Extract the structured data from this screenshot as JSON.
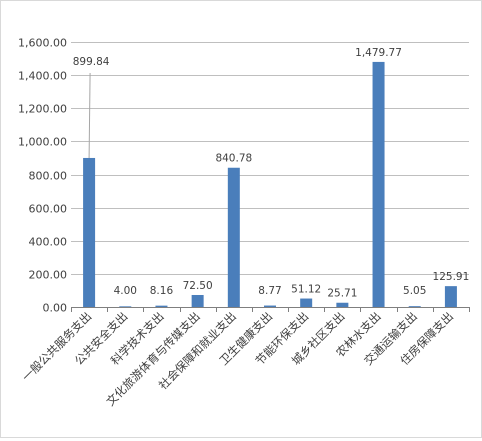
{
  "chart_data": {
    "type": "bar",
    "title": "",
    "xlabel": "",
    "ylabel": "",
    "ylim": [
      0,
      1600
    ],
    "yticks": [
      0,
      200,
      400,
      600,
      800,
      1000,
      1200,
      1400,
      1600
    ],
    "ytick_labels": [
      "0.00",
      "200.00",
      "400.00",
      "600.00",
      "800.00",
      "1,000.00",
      "1,200.00",
      "1,400.00",
      "1,600.00"
    ],
    "grid": "horizontal",
    "legend": "none",
    "colors": {
      "bar": "#4a7ebb",
      "grid": "#bfbfbf",
      "axis": "#7f7f7f",
      "text": "#404040"
    },
    "categories": [
      "一般公共服务支出",
      "公共安全支出",
      "科学技术支出",
      "文化旅游体育与传媒支出",
      "社会保障和就业支出",
      "卫生健康支出",
      "节能环保支出",
      "城乡社区支出",
      "农林水支出",
      "交通运输支出",
      "住房保障支出"
    ],
    "values": [
      899.84,
      4.0,
      8.16,
      72.5,
      840.78,
      8.77,
      51.12,
      25.71,
      1479.77,
      5.05,
      125.91
    ],
    "value_labels": [
      "899.84",
      "4.00",
      "8.16",
      "72.50",
      "840.78",
      "8.77",
      "51.12",
      "25.71",
      "1,479.77",
      "5.05",
      "125.91"
    ]
  }
}
